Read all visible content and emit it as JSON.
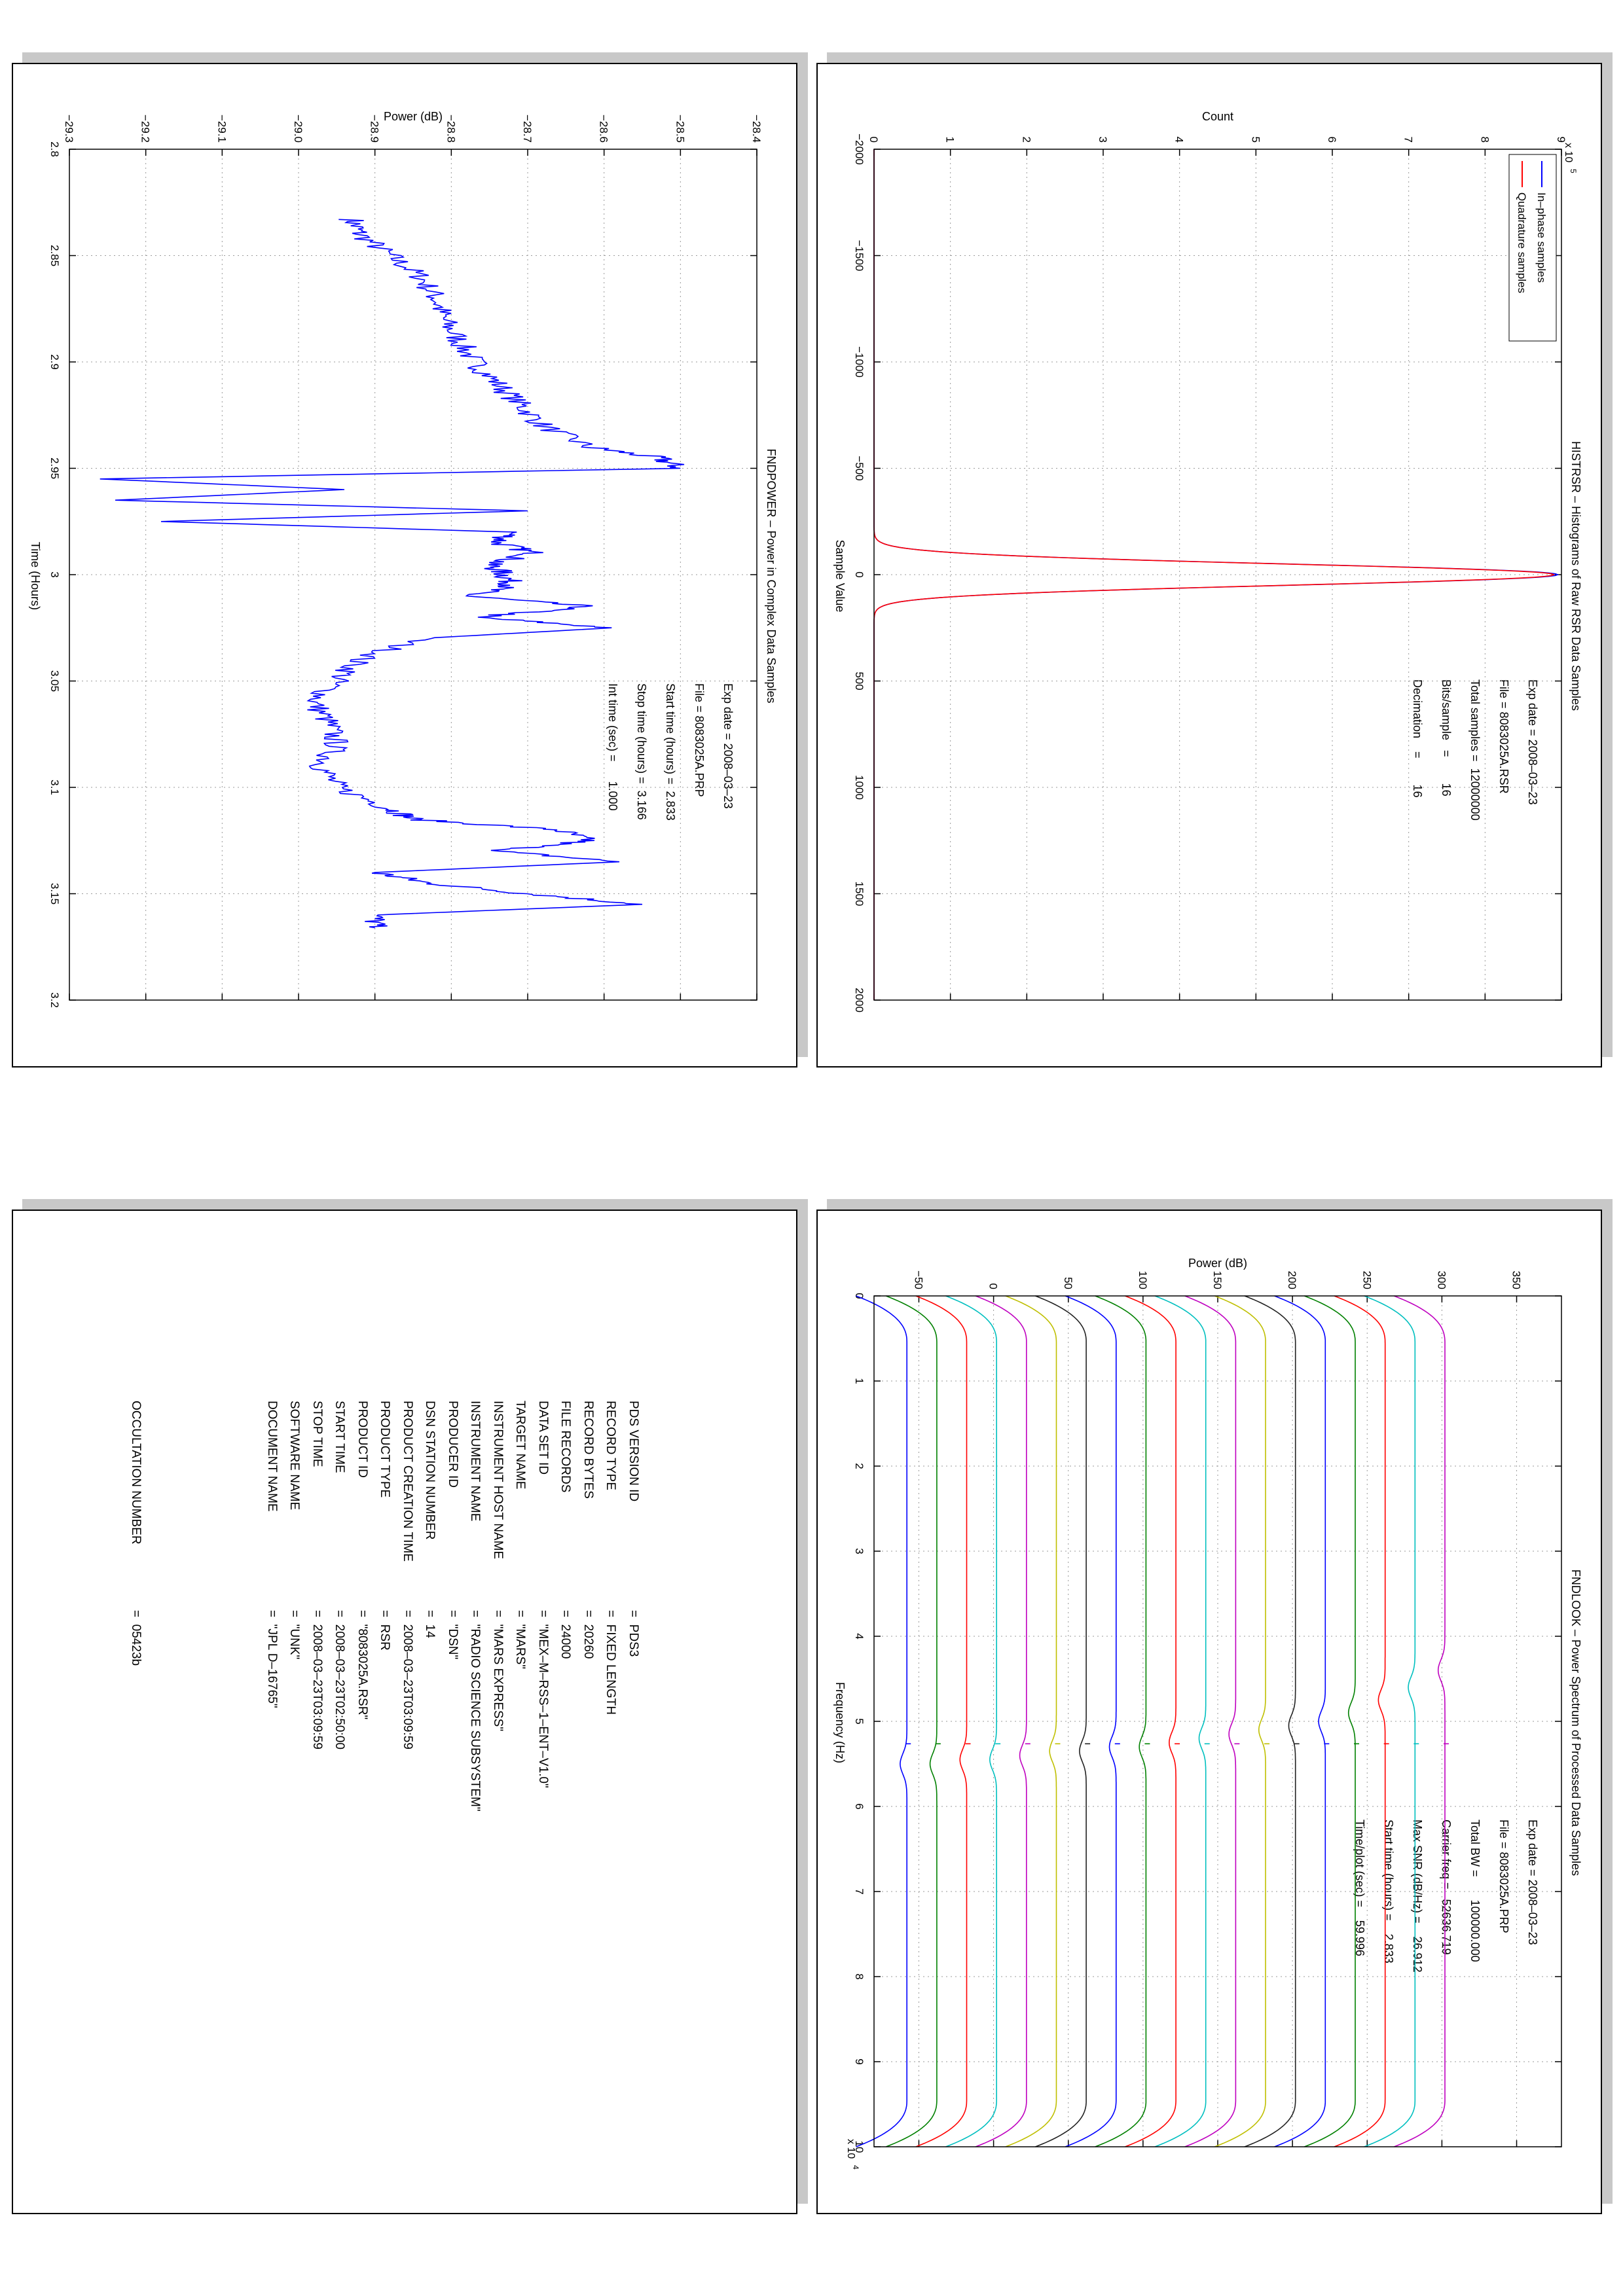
{
  "panels": {
    "histrsr": {
      "title": "HISTRSR – Histograms of Raw RSR Data Samples",
      "xlabel": "Sample Value",
      "ylabel": "Count",
      "exponent_base": "x 10",
      "exponent_power": "5",
      "info": [
        "Exp date = 2008–03–23",
        "File = 8083025A.RSR",
        "Total samples =  12000000",
        "Bits/sample   =        16",
        "Decimation    =        16"
      ],
      "legend": [
        "In–phase samples",
        "Quadrature samples"
      ]
    },
    "fndpower": {
      "title": "FNDPOWER – Power in Complex Data Samples",
      "xlabel": "Time (Hours)",
      "ylabel": "Power (dB)",
      "info": [
        "Exp date = 2008–03–23",
        "File = 8083025A.PRP",
        "Start time (hours) =  2.833",
        "Stop time (hours) =  3.166",
        "Int time (sec) =      1.000"
      ]
    },
    "fndlook": {
      "title": "FNDLOOK – Power Spectrum of Processed Data Samples",
      "xlabel": "Frequency (Hz)",
      "ylabel": "Power (dB)",
      "exponent_base": "x 10",
      "exponent_power": "4",
      "info": [
        "Exp date = 2008–03–23",
        "File = 8083025A.PRP",
        "Total BW =       100000.000",
        "Carrier freq =   52636.719",
        "Max SNR (dB/Hz) =    26.912",
        "Start time (hours) =    2.833",
        "Time/plot (sec) =    59.996"
      ]
    },
    "pds_label": {
      "rows": [
        {
          "key": "PDS VERSION ID",
          "val": "=  PDS3"
        },
        {
          "key": "RECORD TYPE",
          "val": "=  FIXED LENGTH"
        },
        {
          "key": "RECORD BYTES",
          "val": "=  20260"
        },
        {
          "key": "FILE RECORDS",
          "val": "=  24000"
        },
        {
          "key": "DATA SET ID",
          "val": "=  \"MEX–M–RSS–1–ENT–V1.0\""
        },
        {
          "key": "TARGET NAME",
          "val": "=  \"MARS\""
        },
        {
          "key": "INSTRUMENT HOST NAME",
          "val": "=  \"MARS EXPRESS\""
        },
        {
          "key": "INSTRUMENT NAME",
          "val": "=  \"RADIO SCIENCE SUBSYSTEM\""
        },
        {
          "key": "PRODUCER ID",
          "val": "=  \"DSN\""
        },
        {
          "key": "DSN STATION NUMBER",
          "val": "=  14"
        },
        {
          "key": "PRODUCT CREATION TIME",
          "val": "=  2008–03–23T03:09:59"
        },
        {
          "key": "PRODUCT TYPE",
          "val": "=  RSR"
        },
        {
          "key": "PRODUCT ID",
          "val": "=  \"8083025A.RSR\""
        },
        {
          "key": "START TIME",
          "val": "=  2008–03–23T02:50:00"
        },
        {
          "key": "STOP TIME",
          "val": "=  2008–03–23T03:09:59"
        },
        {
          "key": "SOFTWARE NAME",
          "val": "=  \"UNK\""
        },
        {
          "key": "DOCUMENT NAME",
          "val": "=  \"JPL D–16765\""
        }
      ],
      "occultation": {
        "key": "OCCULTATION NUMBER",
        "val": "=  05423b"
      }
    }
  },
  "chart_data": [
    {
      "type": "line",
      "panel": "histrsr",
      "title": "HISTRSR – Histograms of Raw RSR Data Samples",
      "xlabel": "Sample Value",
      "ylabel": "Count",
      "xlim": [
        -2000,
        2000
      ],
      "ylim": [
        0,
        9
      ],
      "y_multiplier": "x 10^5",
      "xticks": [
        -2000,
        -1500,
        -1000,
        -500,
        0,
        500,
        1000,
        1500,
        2000
      ],
      "yticks": [
        0,
        1,
        2,
        3,
        4,
        5,
        6,
        7,
        8,
        9
      ],
      "grid": true,
      "legend_position": "top-left",
      "series": [
        {
          "name": "In–phase samples",
          "color": "#0000ff",
          "peak": 8.95,
          "center": 0,
          "sigma": 50
        },
        {
          "name": "Quadrature samples",
          "color": "#ff0000",
          "peak": 8.9,
          "center": 0,
          "sigma": 50
        }
      ]
    },
    {
      "type": "line",
      "panel": "fndpower",
      "title": "FNDPOWER – Power in Complex Data Samples",
      "xlabel": "Time (Hours)",
      "ylabel": "Power (dB)",
      "xlim": [
        2.8,
        3.2
      ],
      "ylim": [
        -29.3,
        -28.4
      ],
      "xticks": [
        2.8,
        2.85,
        2.9,
        2.95,
        3.0,
        3.05,
        3.1,
        3.15,
        3.2
      ],
      "yticks": [
        -29.3,
        -29.2,
        -29.1,
        -29.0,
        -28.9,
        -28.8,
        -28.7,
        -28.6,
        -28.5,
        -28.4
      ],
      "grid": true,
      "series": [
        {
          "name": "",
          "color": "#0000ff",
          "x": [
            2.833,
            2.84,
            2.85,
            2.86,
            2.87,
            2.88,
            2.89,
            2.9,
            2.91,
            2.92,
            2.93,
            2.94,
            2.945,
            2.95,
            2.955,
            2.96,
            2.965,
            2.97,
            2.975,
            2.98,
            2.985,
            2.99,
            2.995,
            3.0,
            3.005,
            3.01,
            3.015,
            3.02,
            3.025,
            3.03,
            3.04,
            3.05,
            3.06,
            3.07,
            3.08,
            3.09,
            3.1,
            3.11,
            3.115,
            3.12,
            3.125,
            3.13,
            3.135,
            3.14,
            3.145,
            3.15,
            3.155,
            3.16,
            3.166
          ],
          "y": [
            -28.93,
            -28.92,
            -28.88,
            -28.84,
            -28.82,
            -28.81,
            -28.79,
            -28.77,
            -28.74,
            -28.71,
            -28.68,
            -28.62,
            -28.53,
            -28.5,
            -29.26,
            -28.94,
            -29.24,
            -28.7,
            -29.18,
            -28.72,
            -28.74,
            -28.69,
            -28.75,
            -28.73,
            -28.72,
            -28.78,
            -28.62,
            -28.77,
            -28.59,
            -28.84,
            -28.92,
            -28.95,
            -28.98,
            -28.96,
            -28.95,
            -28.97,
            -28.95,
            -28.88,
            -28.85,
            -28.66,
            -28.62,
            -28.74,
            -28.58,
            -28.9,
            -28.83,
            -28.7,
            -28.55,
            -28.9,
            -28.9
          ]
        }
      ]
    },
    {
      "type": "line",
      "panel": "fndlook",
      "title": "FNDLOOK – Power Spectrum of Processed Data Samples",
      "xlabel": "Frequency (Hz)",
      "ylabel": "Power (dB)",
      "xlim": [
        0,
        10
      ],
      "x_multiplier": "x 10^4",
      "ylim": [
        -80,
        380
      ],
      "xticks": [
        0,
        1,
        2,
        3,
        4,
        5,
        6,
        7,
        8,
        9,
        10
      ],
      "yticks": [
        -50,
        0,
        50,
        100,
        150,
        200,
        250,
        300,
        350
      ],
      "ytick_labels": [
        "−50",
        "0",
        "50",
        "100",
        "150",
        "200",
        "250",
        "300",
        "350"
      ],
      "grid": true,
      "carrier_freq_e4": 5.2637,
      "series": [
        {
          "name": "",
          "color": "#0000ff",
          "level": -58,
          "marker_x": 5.5
        },
        {
          "name": "",
          "color": "#008000",
          "level": -38,
          "marker_x": 5.5
        },
        {
          "name": "",
          "color": "#ff0000",
          "level": -18,
          "marker_x": 5.45
        },
        {
          "name": "",
          "color": "#00bfbf",
          "level": 2,
          "marker_x": 5.45
        },
        {
          "name": "",
          "color": "#bf00bf",
          "level": 22,
          "marker_x": 5.4
        },
        {
          "name": "",
          "color": "#bfbf00",
          "level": 42,
          "marker_x": 5.35
        },
        {
          "name": "",
          "color": "#222222",
          "level": 62,
          "marker_x": 5.35
        },
        {
          "name": "",
          "color": "#0000ff",
          "level": 82,
          "marker_x": 5.3
        },
        {
          "name": "",
          "color": "#008000",
          "level": 102,
          "marker_x": 5.3
        },
        {
          "name": "",
          "color": "#ff0000",
          "level": 122,
          "marker_x": 5.25
        },
        {
          "name": "",
          "color": "#00bfbf",
          "level": 142,
          "marker_x": 5.2
        },
        {
          "name": "",
          "color": "#bf00bf",
          "level": 162,
          "marker_x": 5.15
        },
        {
          "name": "",
          "color": "#bfbf00",
          "level": 182,
          "marker_x": 5.1
        },
        {
          "name": "",
          "color": "#222222",
          "level": 202,
          "marker_x": 5.05
        },
        {
          "name": "",
          "color": "#0000ff",
          "level": 222,
          "marker_x": 5.0
        },
        {
          "name": "",
          "color": "#008000",
          "level": 242,
          "marker_x": 4.9
        },
        {
          "name": "",
          "color": "#ff0000",
          "level": 262,
          "marker_x": 4.75
        },
        {
          "name": "",
          "color": "#00bfbf",
          "level": 282,
          "marker_x": 4.6
        },
        {
          "name": "",
          "color": "#bf00bf",
          "level": 302,
          "marker_x": 4.4
        }
      ]
    }
  ]
}
